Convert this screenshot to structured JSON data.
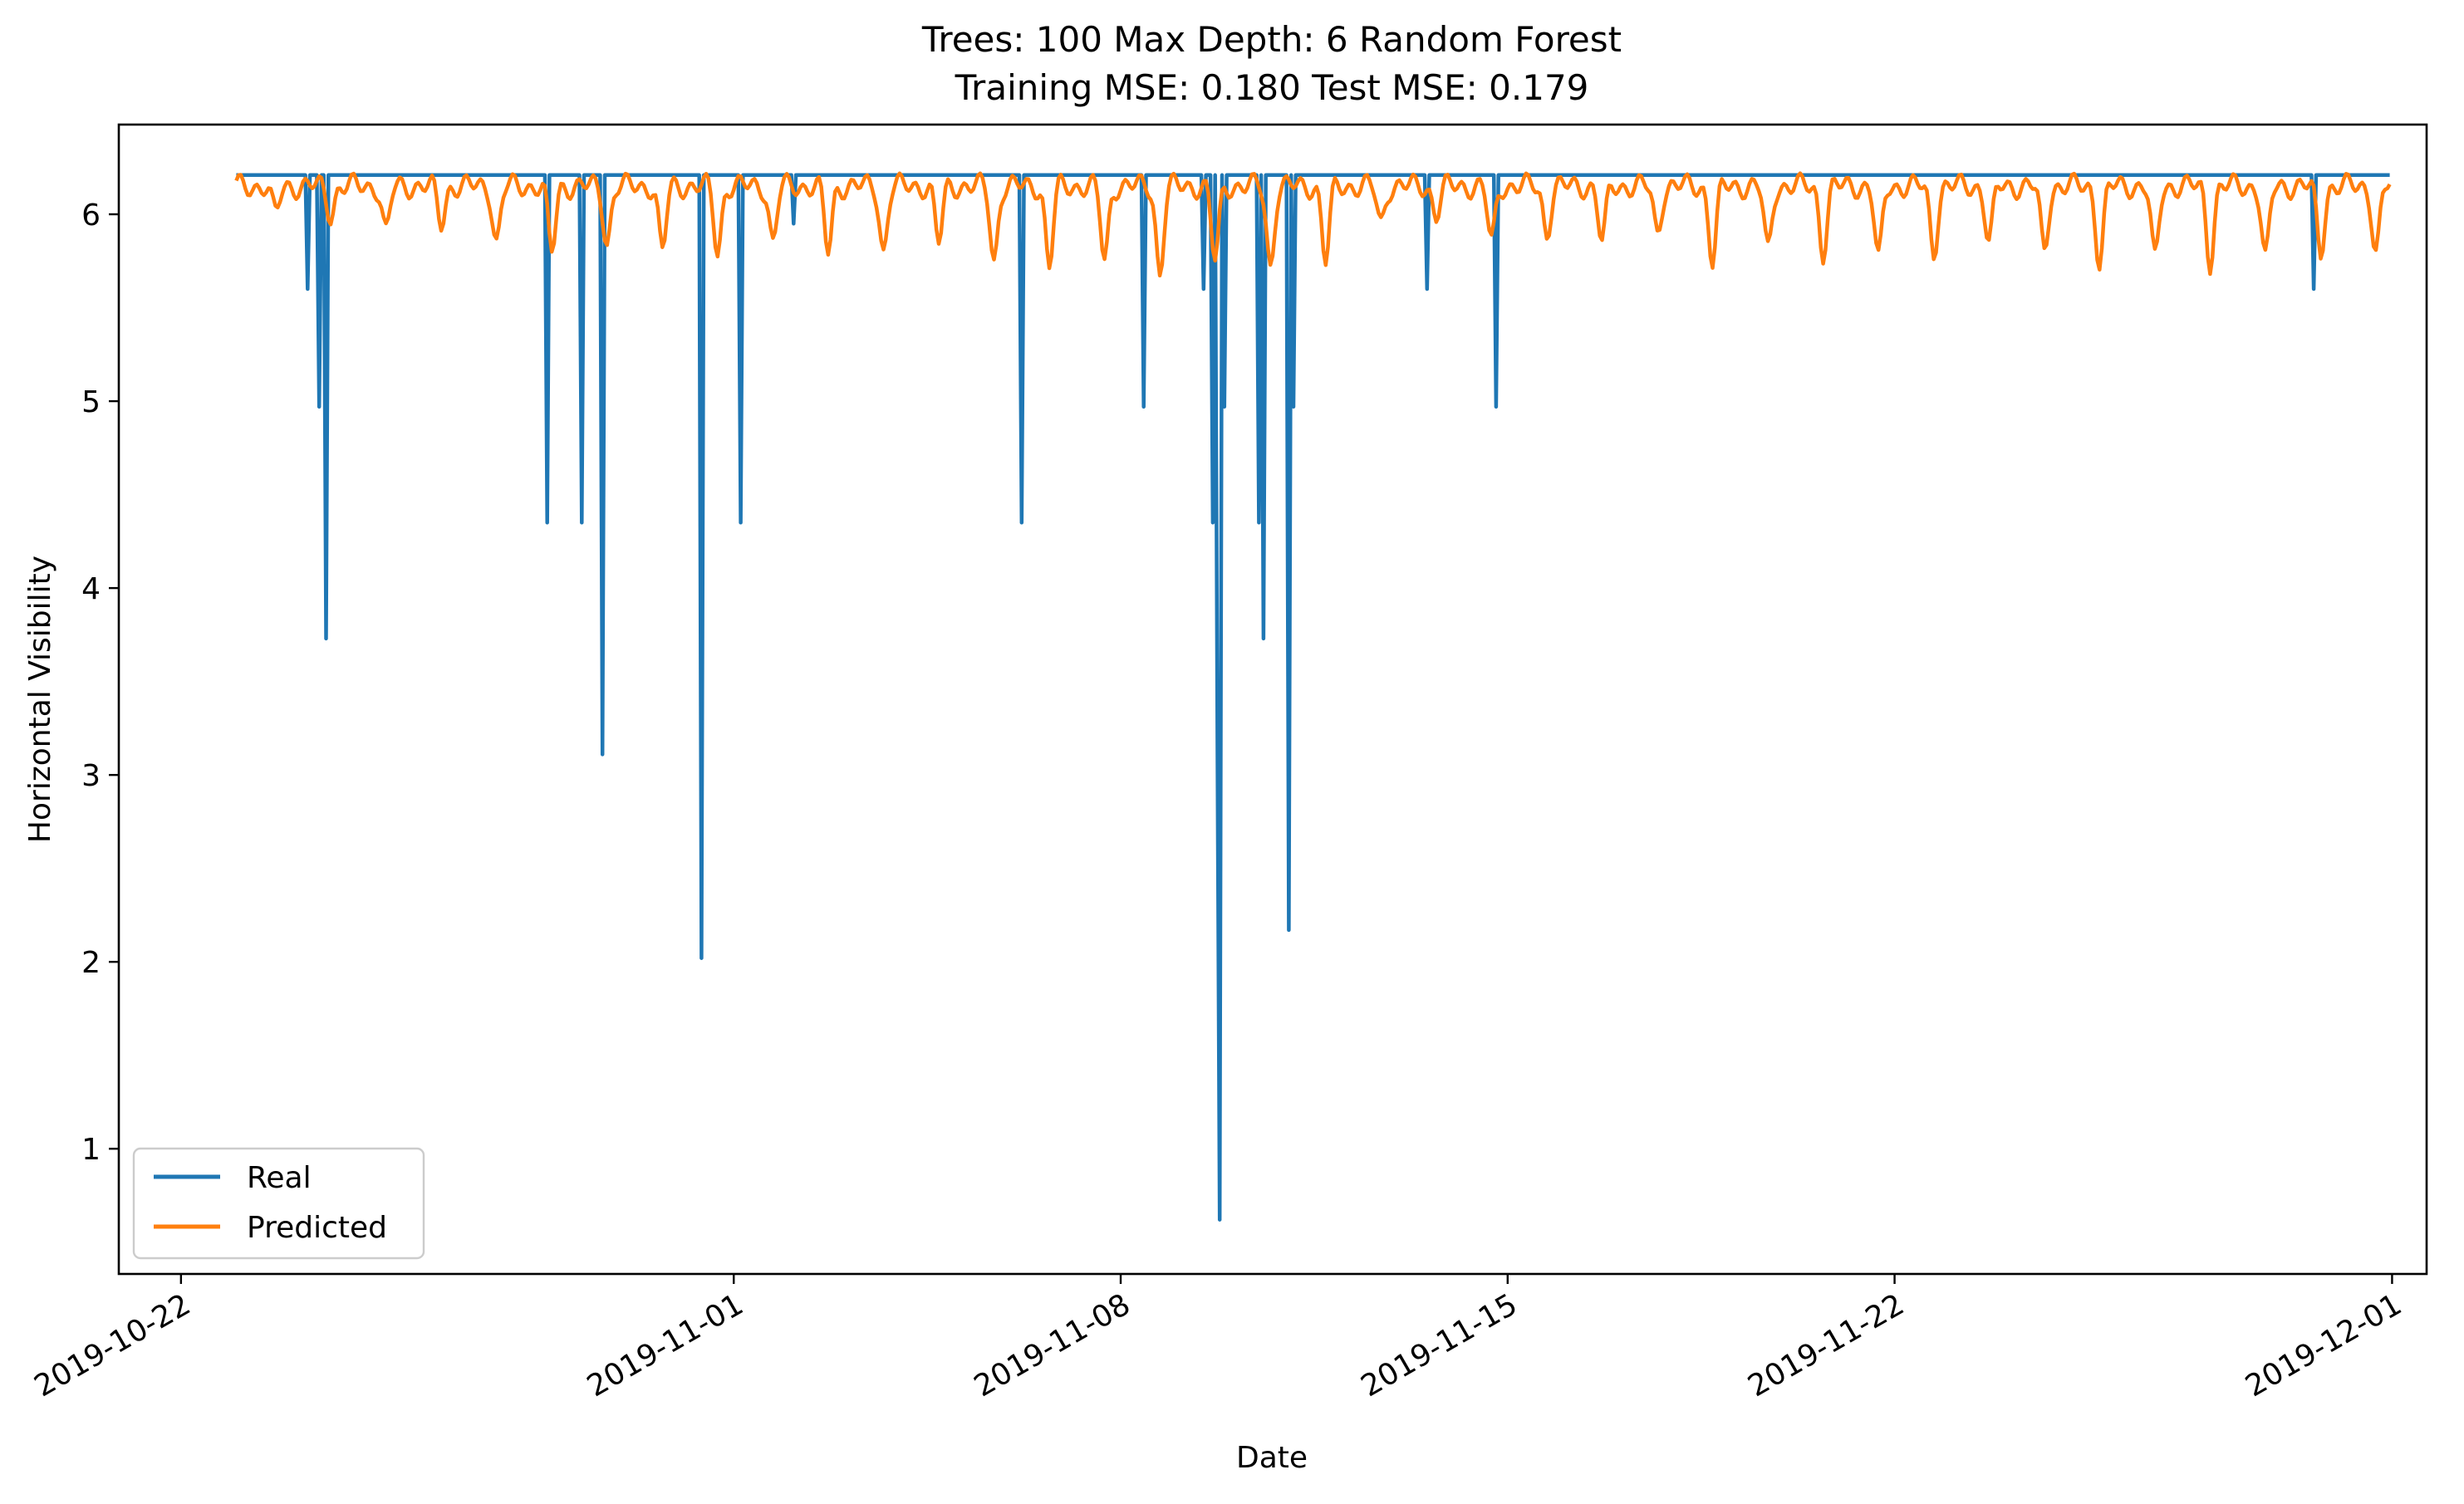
{
  "chart_data": {
    "type": "line",
    "title": "Trees: 100 Max Depth: 6 Random Forest",
    "subtitle": "Training MSE: 0.180 Test MSE: 0.179",
    "xlabel": "Date",
    "ylabel": "Horizontal Visibility",
    "x_tick_labels": [
      "2019-10-22",
      "2019-11-01",
      "2019-11-08",
      "2019-11-15",
      "2019-11-22",
      "2019-12-01"
    ],
    "x_tick_dates": [
      "2019-10-22",
      "2019-11-01",
      "2019-11-08",
      "2019-11-15",
      "2019-11-22",
      "2019-12-01"
    ],
    "xlim": [
      "2019-10-20T21:00",
      "2019-12-01T15:00"
    ],
    "y_tick_labels": [
      "1",
      "2",
      "3",
      "4",
      "5",
      "6"
    ],
    "y_ticks": [
      1,
      2,
      3,
      4,
      5,
      6
    ],
    "ylim": [
      0.33,
      6.48
    ],
    "grid": false,
    "legend_position": "lower-left",
    "x_start": "2019-10-23T00:00",
    "x_end": "2019-11-30T23:00",
    "series": [
      {
        "name": "Real",
        "color": "#1f77b4",
        "baseline": 6.21,
        "dips": [
          {
            "t": "2019-10-24T07:00",
            "v": 5.6
          },
          {
            "t": "2019-10-24T09:00",
            "v": 6.21
          },
          {
            "t": "2019-10-24T12:00",
            "v": 4.97
          },
          {
            "t": "2019-10-24T14:00",
            "v": 6.21
          },
          {
            "t": "2019-10-24T15:00",
            "v": 3.73
          },
          {
            "t": "2019-10-28T15:00",
            "v": 4.35
          },
          {
            "t": "2019-10-29T06:00",
            "v": 4.35
          },
          {
            "t": "2019-10-29T15:00",
            "v": 3.11
          },
          {
            "t": "2019-10-31T10:00",
            "v": 2.02
          },
          {
            "t": "2019-11-01T03:00",
            "v": 4.35
          },
          {
            "t": "2019-11-02T02:00",
            "v": 5.95
          },
          {
            "t": "2019-11-06T05:00",
            "v": 4.35
          },
          {
            "t": "2019-11-08T10:00",
            "v": 4.97
          },
          {
            "t": "2019-11-09T12:00",
            "v": 5.6
          },
          {
            "t": "2019-11-09T16:00",
            "v": 4.35
          },
          {
            "t": "2019-11-09T18:00",
            "v": 3.11
          },
          {
            "t": "2019-11-09T19:00",
            "v": 0.62
          },
          {
            "t": "2019-11-09T21:00",
            "v": 4.97
          },
          {
            "t": "2019-11-10T12:00",
            "v": 4.35
          },
          {
            "t": "2019-11-10T14:00",
            "v": 3.73
          },
          {
            "t": "2019-11-11T01:00",
            "v": 2.17
          },
          {
            "t": "2019-11-11T03:00",
            "v": 4.97
          },
          {
            "t": "2019-11-13T13:00",
            "v": 5.6
          },
          {
            "t": "2019-11-14T19:00",
            "v": 4.97
          },
          {
            "t": "2019-11-29T14:00",
            "v": 5.6
          }
        ]
      },
      {
        "name": "Predicted",
        "color": "#ff7f0e",
        "baseline": 6.15,
        "daily_dip_hour": 17,
        "daily_dip_values": [
          6.0,
          6.0,
          5.9,
          5.95,
          5.85,
          5.8,
          5.85,
          5.8,
          5.8,
          5.85,
          5.8,
          5.8,
          5.85,
          5.75,
          5.72,
          5.75,
          5.68,
          5.75,
          5.72,
          5.75,
          5.95,
          6.0,
          5.85,
          5.9,
          5.85,
          5.9,
          5.75,
          5.8,
          5.8,
          5.75,
          5.8,
          5.85,
          5.8,
          5.75,
          5.75,
          5.75,
          5.75,
          5.8,
          5.8
        ]
      }
    ]
  }
}
